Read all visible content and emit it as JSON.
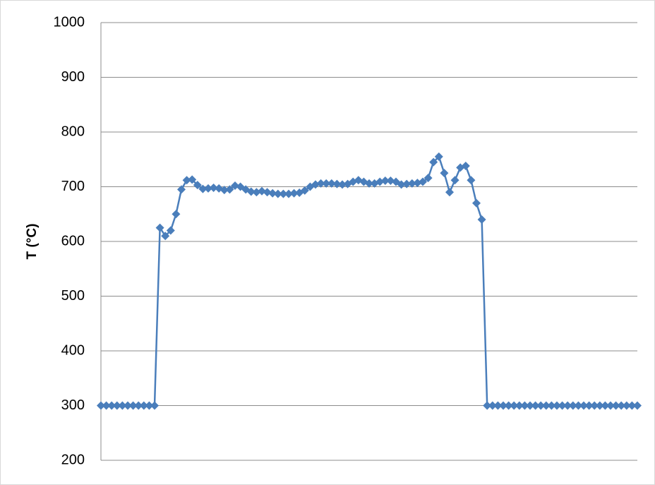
{
  "chart_data": {
    "type": "line",
    "y_label": "T (°C)",
    "series": [
      {
        "color": "#4a7ebb",
        "values": [
          300,
          300,
          300,
          300,
          300,
          300,
          300,
          300,
          300,
          300,
          300,
          625,
          610,
          620,
          650,
          695,
          712,
          713,
          703,
          696,
          697,
          698,
          697,
          694,
          695,
          702,
          700,
          695,
          691,
          690,
          692,
          690,
          688,
          687,
          687,
          687,
          688,
          689,
          693,
          700,
          704,
          706,
          706,
          706,
          705,
          704,
          705,
          709,
          712,
          709,
          706,
          706,
          709,
          711,
          711,
          709,
          704,
          705,
          706,
          707,
          709,
          716,
          745,
          755,
          725,
          690,
          712,
          735,
          738,
          712,
          670,
          640,
          300,
          300,
          300,
          300,
          300,
          300,
          300,
          300,
          300,
          300,
          300,
          300,
          300,
          300,
          300,
          300,
          300,
          300,
          300,
          300,
          300,
          300,
          300,
          300,
          300,
          300,
          300,
          300,
          300
        ]
      }
    ],
    "ylim": [
      200,
      1000
    ],
    "yticks": [
      200,
      300,
      400,
      500,
      600,
      700,
      800,
      900,
      1000
    ],
    "grid": true
  }
}
